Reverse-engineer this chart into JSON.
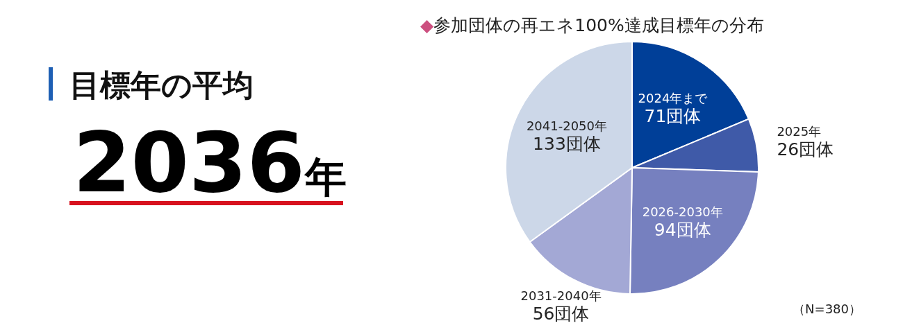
{
  "chart_data": [
    {
      "type": "other",
      "title": "目標年の平均",
      "annotations": [
        "2036年"
      ]
    },
    {
      "type": "pie",
      "title": "◆参加団体の再エネ100%達成目標年の分布",
      "categories": [
        "2024年まで",
        "2025年",
        "2026-2030年",
        "2031-2040年",
        "2041-2050年"
      ],
      "values": [
        71,
        26,
        94,
        56,
        133
      ],
      "colors": [
        "#003f98",
        "#3f5aa8",
        "#7680bf",
        "#a3a8d5",
        "#ccd7e8"
      ],
      "value_labels": [
        "71団体",
        "26団体",
        "94団体",
        "56団体",
        "133団体"
      ],
      "annotations": [
        "（N=380）"
      ]
    }
  ]
}
